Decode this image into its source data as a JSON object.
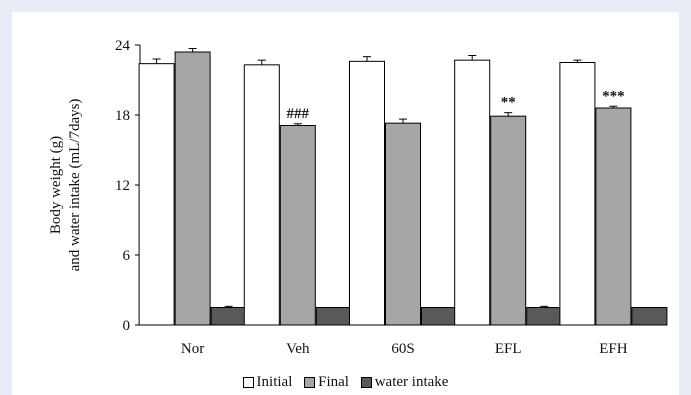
{
  "chart_data": {
    "type": "bar",
    "title": "",
    "ylabel_lines": [
      "Body weight (g)",
      "and water intake (mL/7days)"
    ],
    "xlabel": "",
    "ylim": [
      0,
      24
    ],
    "yticks": [
      0,
      6,
      12,
      18,
      24
    ],
    "categories": [
      "Nor",
      "Veh",
      "60S",
      "EFL",
      "EFH"
    ],
    "series": [
      {
        "name": "Initial",
        "values": [
          22.4,
          22.3,
          22.6,
          22.7,
          22.5
        ],
        "errors": [
          0.4,
          0.4,
          0.4,
          0.4,
          0.2
        ],
        "color": "#ffffff"
      },
      {
        "name": "Final",
        "values": [
          23.4,
          17.1,
          17.3,
          17.9,
          18.6
        ],
        "errors": [
          0.3,
          0.15,
          0.35,
          0.3,
          0.15
        ],
        "color": "#a6a6a6"
      },
      {
        "name": "water intake",
        "values": [
          1.5,
          1.5,
          1.5,
          1.5,
          1.5
        ],
        "errors": [
          0.1,
          0,
          0,
          0.1,
          0
        ],
        "color": "#595959"
      }
    ],
    "annotations": [
      {
        "category": "Veh",
        "series": "Final",
        "text": "###"
      },
      {
        "category": "EFL",
        "series": "Final",
        "text": "**"
      },
      {
        "category": "EFH",
        "series": "Final",
        "text": "***"
      }
    ],
    "grid": false,
    "legend_position": "bottom"
  }
}
